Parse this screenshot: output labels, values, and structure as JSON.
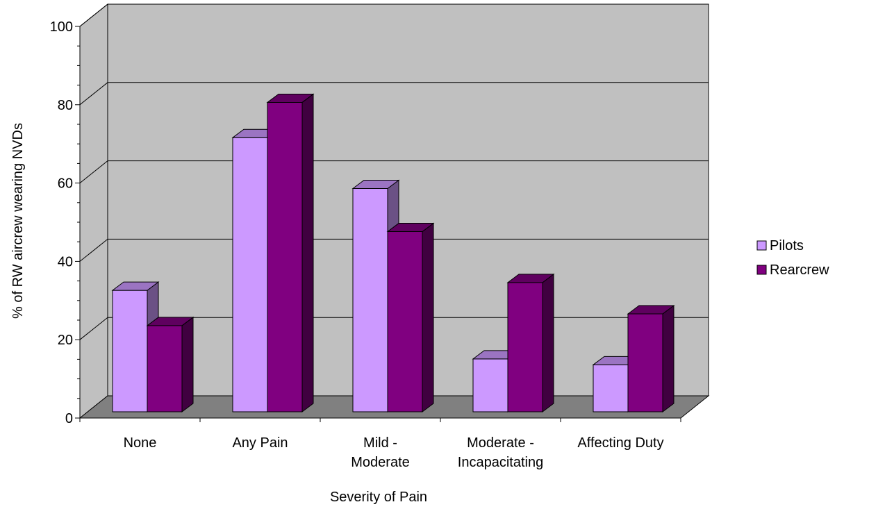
{
  "chart_data": {
    "type": "bar",
    "title": "",
    "xlabel": "Severity of Pain",
    "ylabel": "% of RW aircrew wearing NVDs",
    "ylim": [
      0,
      100
    ],
    "y_ticks": [
      "0",
      "20",
      "40",
      "60",
      "80",
      "100"
    ],
    "categories": [
      [
        "None"
      ],
      [
        "Any Pain"
      ],
      [
        "Mild -",
        "Moderate"
      ],
      [
        "Moderate -",
        "Incapacitating"
      ],
      [
        "Affecting Duty"
      ]
    ],
    "series": [
      {
        "name": "Pilots",
        "values": [
          31,
          70,
          57,
          13.5,
          12
        ]
      },
      {
        "name": "Rearcrew",
        "values": [
          22,
          79,
          46,
          33,
          25
        ]
      }
    ],
    "grid": true,
    "three_d": true,
    "legend_position": "right",
    "colors": {
      "Pilots": {
        "front": "#cc99ff",
        "top": "#9b74c2",
        "side": "#6b5185"
      },
      "Rearcrew": {
        "front": "#800080",
        "top": "#5f005f",
        "side": "#400040"
      },
      "wall": "#c0c0c0",
      "floor": "#808080",
      "gridline": "#000000"
    }
  }
}
